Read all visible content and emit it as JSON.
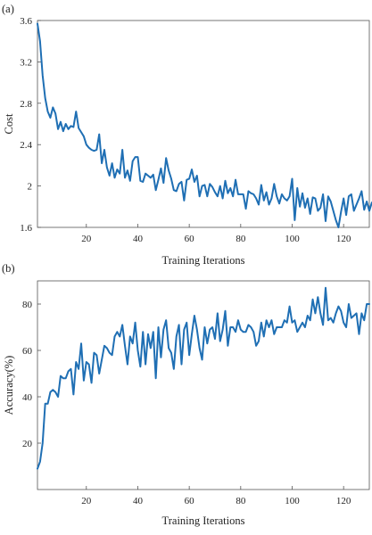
{
  "chart_data": [
    {
      "type": "line",
      "panel_label": "(a)",
      "xlabel": "Training Iterations",
      "ylabel": "Cost",
      "xlim": [
        1,
        130
      ],
      "ylim": [
        1.6,
        3.6
      ],
      "xticks": [
        20,
        40,
        60,
        80,
        100,
        120
      ],
      "xtick_labels": [
        "20",
        "40",
        "60",
        "80",
        "100",
        "120"
      ],
      "yticks": [
        1.6,
        2.0,
        2.4,
        2.8,
        3.2,
        3.6
      ],
      "ytick_labels": [
        "1.6",
        "2",
        "2.4",
        "2.8",
        "3.2",
        "3.6"
      ],
      "grid": false,
      "color": "#1f6fb4",
      "series": [
        {
          "values": [
            3.57,
            3.4,
            3.07,
            2.85,
            2.72,
            2.66,
            2.76,
            2.7,
            2.55,
            2.62,
            2.53,
            2.6,
            2.55,
            2.58,
            2.57,
            2.72,
            2.56,
            2.52,
            2.48,
            2.4,
            2.37,
            2.35,
            2.34,
            2.35,
            2.5,
            2.22,
            2.35,
            2.18,
            2.1,
            2.22,
            2.08,
            2.16,
            2.12,
            2.35,
            2.08,
            2.15,
            2.05,
            2.24,
            2.28,
            2.28,
            2.05,
            2.04,
            2.12,
            2.1,
            2.08,
            2.11,
            1.96,
            2.06,
            2.17,
            2.03,
            2.27,
            2.15,
            2.07,
            1.96,
            1.95,
            2.02,
            2.04,
            1.86,
            2.06,
            2.07,
            2.16,
            2.04,
            2.1,
            1.9,
            2.0,
            2.01,
            1.9,
            2.02,
            1.99,
            1.94,
            1.9,
            2.0,
            1.88,
            2.05,
            1.93,
            1.98,
            1.9,
            2.06,
            1.92,
            1.92,
            1.92,
            1.78,
            1.95,
            1.93,
            1.92,
            1.88,
            1.82,
            2.01,
            1.86,
            1.94,
            1.82,
            1.88,
            2.02,
            1.9,
            1.83,
            1.92,
            1.88,
            1.86,
            1.9,
            2.07,
            1.67,
            1.98,
            1.8,
            1.93,
            1.79,
            1.88,
            1.73,
            1.89,
            1.88,
            1.76,
            1.79,
            1.92,
            1.66,
            1.9,
            1.85,
            1.76,
            1.67,
            1.6,
            1.75,
            1.88,
            1.72,
            1.9,
            1.92,
            1.76,
            1.82,
            1.88,
            1.95,
            1.77,
            1.85,
            1.76,
            1.84
          ]
        }
      ]
    },
    {
      "type": "line",
      "panel_label": "(b)",
      "xlabel": "Training Iterations",
      "ylabel": "Accuracy(%)",
      "xlim": [
        1,
        130
      ],
      "ylim": [
        0,
        90
      ],
      "xticks": [
        20,
        40,
        60,
        80,
        100,
        120
      ],
      "xtick_labels": [
        "20",
        "40",
        "60",
        "80",
        "100",
        "120"
      ],
      "yticks": [
        20,
        40,
        60,
        80
      ],
      "ytick_labels": [
        "20",
        "40",
        "60",
        "80"
      ],
      "grid": false,
      "color": "#1f6fb4",
      "series": [
        {
          "values": [
            9,
            12,
            20,
            37,
            37,
            42,
            43,
            42,
            40,
            49,
            48,
            48,
            51,
            52,
            41,
            55,
            52,
            63,
            47,
            55,
            54,
            46,
            59,
            58,
            50,
            56,
            62,
            61,
            59,
            58,
            66,
            68,
            66,
            71,
            62,
            54,
            66,
            63,
            72,
            60,
            53,
            68,
            54,
            67,
            61,
            68,
            48,
            70,
            57,
            69,
            73,
            61,
            59,
            52,
            66,
            71,
            54,
            69,
            72,
            58,
            67,
            75,
            69,
            61,
            56,
            70,
            63,
            69,
            70,
            65,
            76,
            64,
            69,
            77,
            62,
            70,
            70,
            68,
            73,
            69,
            68,
            68,
            71,
            70,
            68,
            62,
            64,
            72,
            66,
            73,
            70,
            73,
            67,
            70,
            70,
            70,
            73,
            72,
            79,
            72,
            73,
            68,
            70,
            72,
            70,
            75,
            73,
            82,
            76,
            83,
            76,
            71,
            87,
            73,
            74,
            72,
            76,
            79,
            77,
            72,
            70,
            80,
            74,
            75,
            76,
            67,
            76,
            73,
            80,
            80
          ]
        }
      ]
    }
  ]
}
